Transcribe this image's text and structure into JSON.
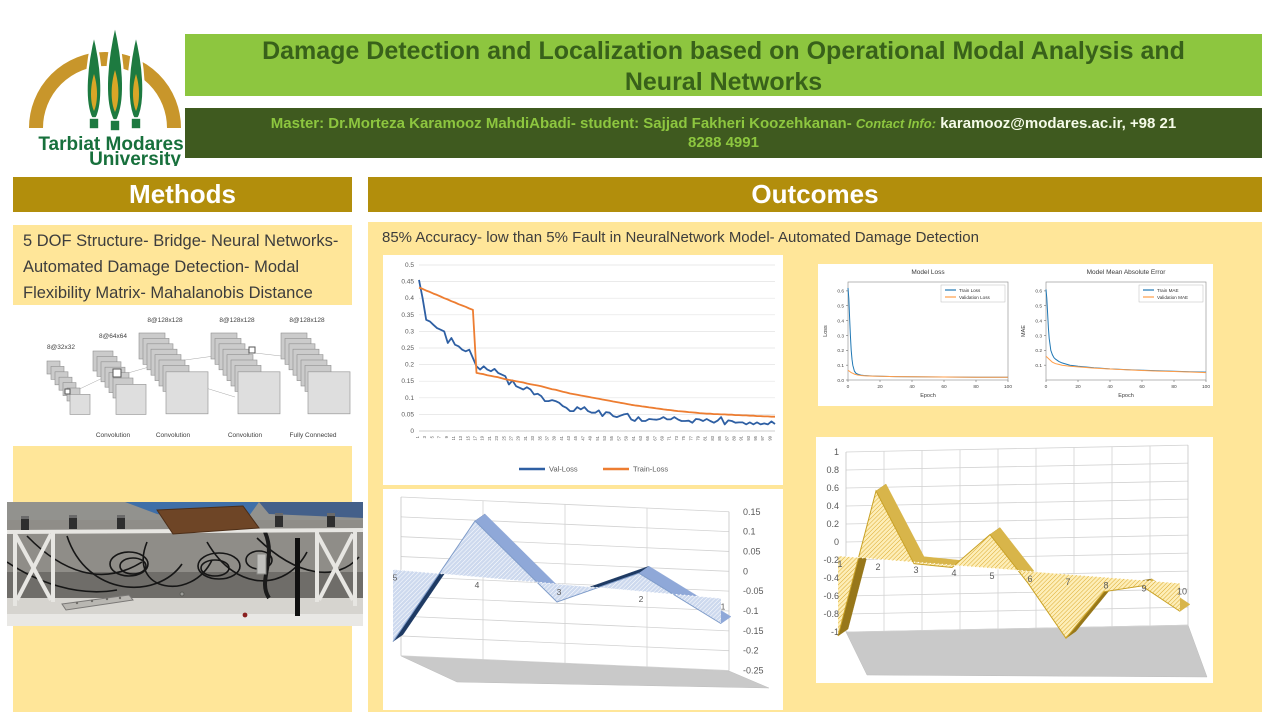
{
  "colors": {
    "light_green": "#8dc63f",
    "dark_green": "#3f5a1f",
    "title_text": "#38611a",
    "gold_bar": "#b28e0c",
    "light_yellow": "#ffe699",
    "excel_blue": "#2e5fa3",
    "excel_orange": "#ed7d31",
    "mpl_blue": "#1f77b4",
    "mpl_orange": "#ff9e4a"
  },
  "logo": {
    "name_line1": "Tarbiat Modares",
    "name_line2": "University"
  },
  "header": {
    "title_line1": "Damage Detection and Localization based on Operational Modal Analysis and",
    "title_line2": "Neural Networks",
    "authors": "Master: Dr.Morteza Karamooz MahdiAbadi- student: Sajjad Fakheri Koozehkanan-",
    "contact_label": "Contact Info:",
    "contact_value": "karamooz@modares.ac.ir, +98 21",
    "contact_value_line2": "8288 4991"
  },
  "methods": {
    "heading": "Methods",
    "summary": "5 DOF Structure- Bridge- Neural Networks- Automated Damage Detection- Modal Flexibility Matrix- Mahalanobis Distance",
    "cnn": {
      "stack_labels": [
        "8@32x32",
        "8@64x64",
        "8@128x128",
        "8@128x128",
        "8@128x128"
      ],
      "captions": [
        "Convolution",
        "Convolution",
        "Convolution",
        "Fully Connected"
      ]
    }
  },
  "outcomes": {
    "heading": "Outcomes",
    "summary": "85% Accuracy- low than 5% Fault in NeuralNetwork Model- Automated Damage Detection"
  },
  "chart_data": [
    {
      "id": "loss_curve",
      "type": "line",
      "title": "",
      "x_start": 1,
      "xtick_labels_every": 2,
      "ylim": [
        0,
        0.5
      ],
      "ytick_step": 0.05,
      "legend_position": "bottom",
      "series": [
        {
          "name": "Val-Loss",
          "color": "#2e5fa3",
          "values": [
            0.455,
            0.4,
            0.335,
            0.33,
            0.32,
            0.31,
            0.305,
            0.3,
            0.265,
            0.28,
            0.26,
            0.255,
            0.245,
            0.24,
            0.245,
            0.22,
            0.195,
            0.185,
            0.195,
            0.185,
            0.18,
            0.187,
            0.175,
            0.17,
            0.165,
            0.14,
            0.152,
            0.135,
            0.13,
            0.125,
            0.132,
            0.125,
            0.11,
            0.112,
            0.105,
            0.09,
            0.09,
            0.093,
            0.09,
            0.085,
            0.075,
            0.07,
            0.06,
            0.06,
            0.072,
            0.065,
            0.072,
            0.06,
            0.055,
            0.055,
            0.062,
            0.045,
            0.057,
            0.055,
            0.045,
            0.042,
            0.046,
            0.05,
            0.052,
            0.035,
            0.03,
            0.042,
            0.03,
            0.03,
            0.036,
            0.035,
            0.034,
            0.036,
            0.042,
            0.035,
            0.035,
            0.042,
            0.035,
            0.03,
            0.03,
            0.031,
            0.025,
            0.036,
            0.035,
            0.03,
            0.036,
            0.03,
            0.025,
            0.031,
            0.042,
            0.02,
            0.032,
            0.03,
            0.025,
            0.026,
            0.026,
            0.02,
            0.026,
            0.02,
            0.026,
            0.02,
            0.023,
            0.02,
            0.029,
            0.021
          ]
        },
        {
          "name": "Train-Loss",
          "color": "#ed7d31",
          "values": [
            0.432,
            0.428,
            0.423,
            0.419,
            0.414,
            0.41,
            0.405,
            0.4,
            0.396,
            0.391,
            0.387,
            0.382,
            0.378,
            0.374,
            0.369,
            0.365,
            0.175,
            0.173,
            0.171,
            0.168,
            0.166,
            0.164,
            0.162,
            0.159,
            0.156,
            0.154,
            0.152,
            0.15,
            0.148,
            0.146,
            0.143,
            0.141,
            0.139,
            0.137,
            0.135,
            0.132,
            0.129,
            0.126,
            0.124,
            0.121,
            0.118,
            0.116,
            0.113,
            0.111,
            0.109,
            0.107,
            0.105,
            0.103,
            0.101,
            0.099,
            0.097,
            0.095,
            0.093,
            0.091,
            0.089,
            0.087,
            0.085,
            0.083,
            0.081,
            0.079,
            0.077,
            0.076,
            0.074,
            0.073,
            0.071,
            0.07,
            0.068,
            0.067,
            0.065,
            0.064,
            0.063,
            0.061,
            0.06,
            0.059,
            0.058,
            0.057,
            0.056,
            0.055,
            0.054,
            0.053,
            0.052,
            0.052,
            0.051,
            0.051,
            0.05,
            0.05,
            0.049,
            0.049,
            0.048,
            0.048,
            0.047,
            0.047,
            0.046,
            0.046,
            0.045,
            0.045,
            0.044,
            0.044,
            0.043,
            0.043
          ]
        }
      ]
    },
    {
      "id": "model_loss",
      "type": "line",
      "title": "Model Loss",
      "xlabel": "Epoch",
      "ylabel": "Loss",
      "xlim": [
        0,
        100
      ],
      "ylim": [
        0,
        0.66
      ],
      "xticks": [
        0,
        20,
        40,
        60,
        80,
        100
      ],
      "yticks": [
        0.0,
        0.1,
        0.2,
        0.3,
        0.4,
        0.5,
        0.6
      ],
      "legend_position": "upper right",
      "series": [
        {
          "name": "Train Loss",
          "color": "#1f77b4",
          "points": [
            [
              0,
              0.62
            ],
            [
              0.5,
              0.55
            ],
            [
              1,
              0.42
            ],
            [
              1.5,
              0.3
            ],
            [
              2,
              0.2
            ],
            [
              2.5,
              0.14
            ],
            [
              3,
              0.1
            ],
            [
              4,
              0.06
            ],
            [
              5,
              0.045
            ],
            [
              6,
              0.04
            ],
            [
              8,
              0.033
            ],
            [
              10,
              0.03
            ],
            [
              15,
              0.027
            ],
            [
              20,
              0.025
            ],
            [
              30,
              0.023
            ],
            [
              40,
              0.022
            ],
            [
              60,
              0.02
            ],
            [
              80,
              0.019
            ],
            [
              100,
              0.018
            ]
          ]
        },
        {
          "name": "Validation Loss",
          "color": "#ff9e4a",
          "points": [
            [
              0,
              0.065
            ],
            [
              1,
              0.058
            ],
            [
              2,
              0.05
            ],
            [
              3,
              0.045
            ],
            [
              4,
              0.04
            ],
            [
              6,
              0.034
            ],
            [
              8,
              0.03
            ],
            [
              10,
              0.028
            ],
            [
              15,
              0.026
            ],
            [
              20,
              0.025
            ],
            [
              30,
              0.023
            ],
            [
              40,
              0.022
            ],
            [
              60,
              0.02
            ],
            [
              80,
              0.019
            ],
            [
              100,
              0.018
            ]
          ]
        }
      ]
    },
    {
      "id": "model_mae",
      "type": "line",
      "title": "Model Mean Absolute Error",
      "xlabel": "Epoch",
      "ylabel": "MAE",
      "xlim": [
        0,
        100
      ],
      "ylim": [
        0,
        0.66
      ],
      "xticks": [
        0,
        20,
        40,
        60,
        80,
        100
      ],
      "yticks": [
        0.1,
        0.2,
        0.3,
        0.4,
        0.5,
        0.6
      ],
      "legend_position": "upper right",
      "series": [
        {
          "name": "Train MAE",
          "color": "#1f77b4",
          "points": [
            [
              0,
              0.61
            ],
            [
              0.5,
              0.55
            ],
            [
              1,
              0.45
            ],
            [
              1.5,
              0.35
            ],
            [
              2,
              0.28
            ],
            [
              3,
              0.2
            ],
            [
              4,
              0.17
            ],
            [
              5,
              0.15
            ],
            [
              6,
              0.14
            ],
            [
              8,
              0.125
            ],
            [
              10,
              0.115
            ],
            [
              15,
              0.1
            ],
            [
              20,
              0.092
            ],
            [
              30,
              0.082
            ],
            [
              40,
              0.075
            ],
            [
              50,
              0.07
            ],
            [
              60,
              0.066
            ],
            [
              70,
              0.062
            ],
            [
              80,
              0.059
            ],
            [
              90,
              0.056
            ],
            [
              100,
              0.053
            ]
          ]
        },
        {
          "name": "Validation MAE",
          "color": "#ff9e4a",
          "points": [
            [
              0,
              0.16
            ],
            [
              1,
              0.15
            ],
            [
              2,
              0.14
            ],
            [
              3,
              0.13
            ],
            [
              4,
              0.12
            ],
            [
              6,
              0.11
            ],
            [
              8,
              0.105
            ],
            [
              10,
              0.1
            ],
            [
              15,
              0.093
            ],
            [
              20,
              0.088
            ],
            [
              30,
              0.08
            ],
            [
              40,
              0.074
            ],
            [
              50,
              0.069
            ],
            [
              60,
              0.064
            ],
            [
              70,
              0.06
            ],
            [
              80,
              0.057
            ],
            [
              90,
              0.054
            ],
            [
              100,
              0.05
            ]
          ]
        }
      ]
    },
    {
      "id": "mode_shape_5dof",
      "type": "area3d",
      "categories": [
        "5",
        "4",
        "3",
        "2",
        "1"
      ],
      "values": [
        -0.2,
        0.155,
        -0.05,
        0.05,
        -0.07
      ],
      "yticks": [
        0.15,
        0.1,
        0.05,
        0,
        -0.05,
        -0.1,
        -0.15,
        -0.2,
        -0.25
      ],
      "axis_side": "right",
      "colors": {
        "fill": "#cdd9ee",
        "hatch": "#ffffff",
        "band_light": "#8fa8d8",
        "band_dark": "#1e3a63",
        "edge": "#7f9cc9",
        "floor": "#c9c9c9"
      }
    },
    {
      "id": "mode_shape_10pt",
      "type": "area3d",
      "categories": [
        "1",
        "2",
        "3",
        "4",
        "5",
        "6",
        "7",
        "8",
        "9",
        "10"
      ],
      "values": [
        -1,
        0.85,
        -0.02,
        -0.03,
        0.42,
        -0.15,
        -0.8,
        -0.18,
        -0.07,
        -0.35
      ],
      "yticks": [
        1,
        0.8,
        0.6,
        0.4,
        0.2,
        0,
        -0.2,
        -0.4,
        -0.6,
        -0.8,
        -1
      ],
      "axis_side": "left",
      "colors": {
        "fill": "#fdeeb8",
        "hatch": "#dca92c",
        "band_light": "#d8b54a",
        "band_dark": "#97771a",
        "edge": "#c9a227",
        "floor": "#c9c9c9"
      }
    }
  ]
}
